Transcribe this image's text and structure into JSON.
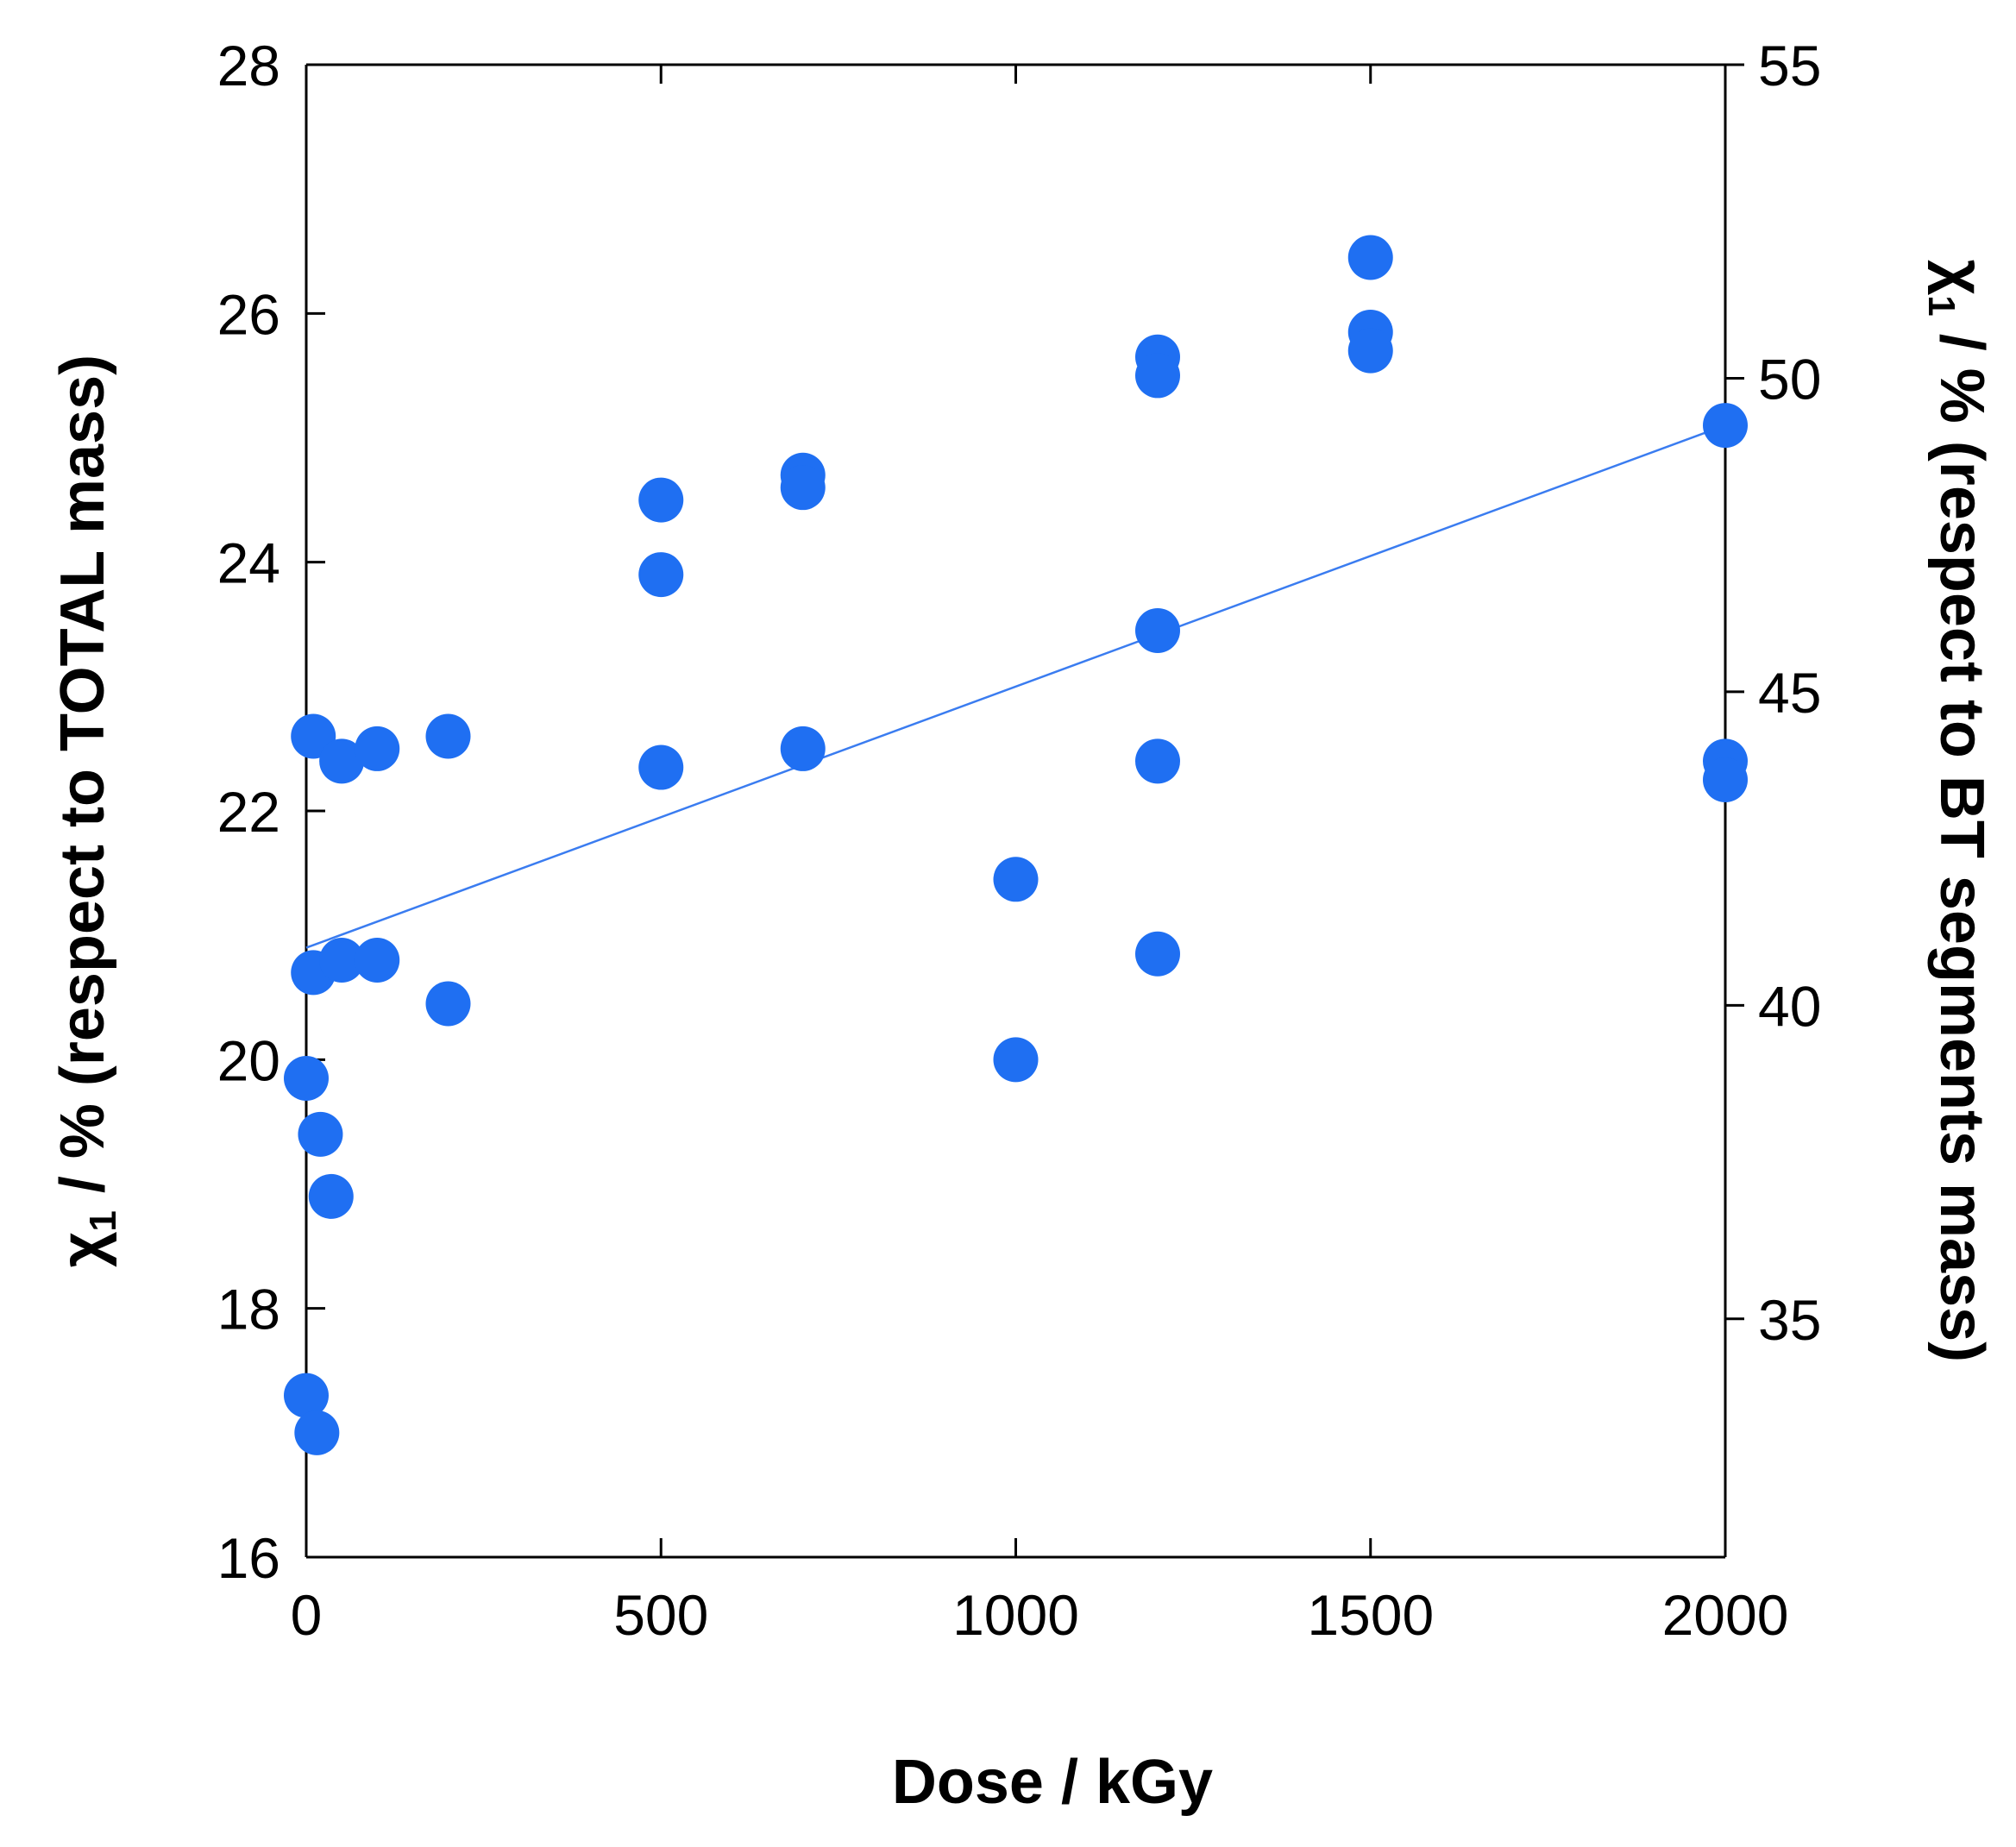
{
  "chart_data": {
    "type": "scatter",
    "title": "",
    "xlabel": "Dose / kGy",
    "ylabel": {
      "symbol": "χ",
      "subscript": "1",
      "rest": " / % (respect to TOTAL mass)"
    },
    "y2label": {
      "symbol": "χ",
      "subscript": "1",
      "rest": " / % (respect to BT segments mass)"
    },
    "xlim": [
      0,
      2000
    ],
    "ylim": [
      16,
      28
    ],
    "y2lim": [
      31.2,
      55.0
    ],
    "xticks": [
      0,
      500,
      1000,
      1500,
      2000
    ],
    "yticks": [
      16,
      18,
      20,
      22,
      24,
      26,
      28
    ],
    "y2ticks": [
      35,
      40,
      45,
      50,
      55
    ],
    "grid": false,
    "legend": "none",
    "marker_color": "#1f6ff2",
    "line_color": "#3a7cf0",
    "series": [
      {
        "values": [
          [
            0,
            19.85
          ],
          [
            0,
            17.3
          ],
          [
            10,
            22.6
          ],
          [
            10,
            20.7
          ],
          [
            15,
            17.0
          ],
          [
            20,
            19.4
          ],
          [
            35,
            18.9
          ],
          [
            50,
            22.4
          ],
          [
            50,
            20.8
          ],
          [
            100,
            22.5
          ],
          [
            100,
            20.8
          ],
          [
            200,
            22.6
          ],
          [
            200,
            20.45
          ],
          [
            500,
            24.5
          ],
          [
            500,
            23.9
          ],
          [
            500,
            22.35
          ],
          [
            700,
            24.7
          ],
          [
            700,
            24.6
          ],
          [
            700,
            22.5
          ],
          [
            1000,
            21.45
          ],
          [
            1000,
            20.0
          ],
          [
            1200,
            25.65
          ],
          [
            1200,
            25.5
          ],
          [
            1200,
            23.45
          ],
          [
            1200,
            22.4
          ],
          [
            1200,
            20.85
          ],
          [
            1500,
            26.45
          ],
          [
            1500,
            25.85
          ],
          [
            1500,
            25.7
          ],
          [
            2000,
            25.1
          ],
          [
            2000,
            22.4
          ],
          [
            2000,
            22.25
          ]
        ]
      }
    ],
    "fit_line": {
      "x": [
        0,
        2000
      ],
      "y": [
        20.9,
        25.1
      ]
    }
  }
}
